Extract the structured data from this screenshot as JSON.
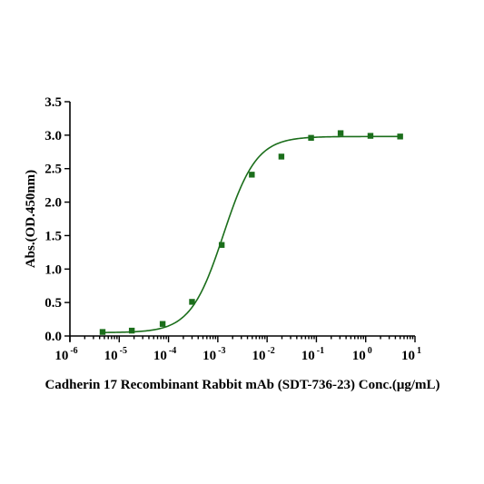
{
  "chart_data": {
    "type": "scatter",
    "xlabel": "Cadherin 17 Recombinant Rabbit mAb (SDT-736-23) Conc.(μg/mL)",
    "ylabel": "Abs.(OD.450nm)",
    "x_scale": "log",
    "xlim": [
      1e-06,
      10
    ],
    "ylim": [
      0,
      3.5
    ],
    "x_tick_labels": [
      {
        "base": "10",
        "exp": "-6"
      },
      {
        "base": "10",
        "exp": "-5"
      },
      {
        "base": "10",
        "exp": "-4"
      },
      {
        "base": "10",
        "exp": "-3"
      },
      {
        "base": "10",
        "exp": "-2"
      },
      {
        "base": "10",
        "exp": "-1"
      },
      {
        "base": "10",
        "exp": "0"
      },
      {
        "base": "10",
        "exp": "1"
      }
    ],
    "y_tick_labels": [
      "0.0",
      "0.5",
      "1.0",
      "1.5",
      "2.0",
      "2.5",
      "3.0",
      "3.5"
    ],
    "series": [
      {
        "points": [
          {
            "x": 4.6e-06,
            "y": 0.06
          },
          {
            "x": 1.8e-05,
            "y": 0.08
          },
          {
            "x": 7.6e-05,
            "y": 0.18
          },
          {
            "x": 0.0003,
            "y": 0.51
          },
          {
            "x": 0.0012,
            "y": 1.36
          },
          {
            "x": 0.0049,
            "y": 2.41
          },
          {
            "x": 0.0195,
            "y": 2.68
          },
          {
            "x": 0.078,
            "y": 2.96
          },
          {
            "x": 0.31,
            "y": 3.03
          },
          {
            "x": 1.25,
            "y": 2.99
          },
          {
            "x": 5,
            "y": 2.98
          }
        ],
        "fit": {
          "model": "4PL",
          "bottom": 0.05,
          "top": 2.98,
          "ec50": 0.0013,
          "hill": 1.3
        }
      }
    ],
    "colors": {
      "marker": "#1b6e1b",
      "curve": "#1b6e1b",
      "axes": "#000000"
    },
    "grid": false,
    "legend": "none"
  }
}
